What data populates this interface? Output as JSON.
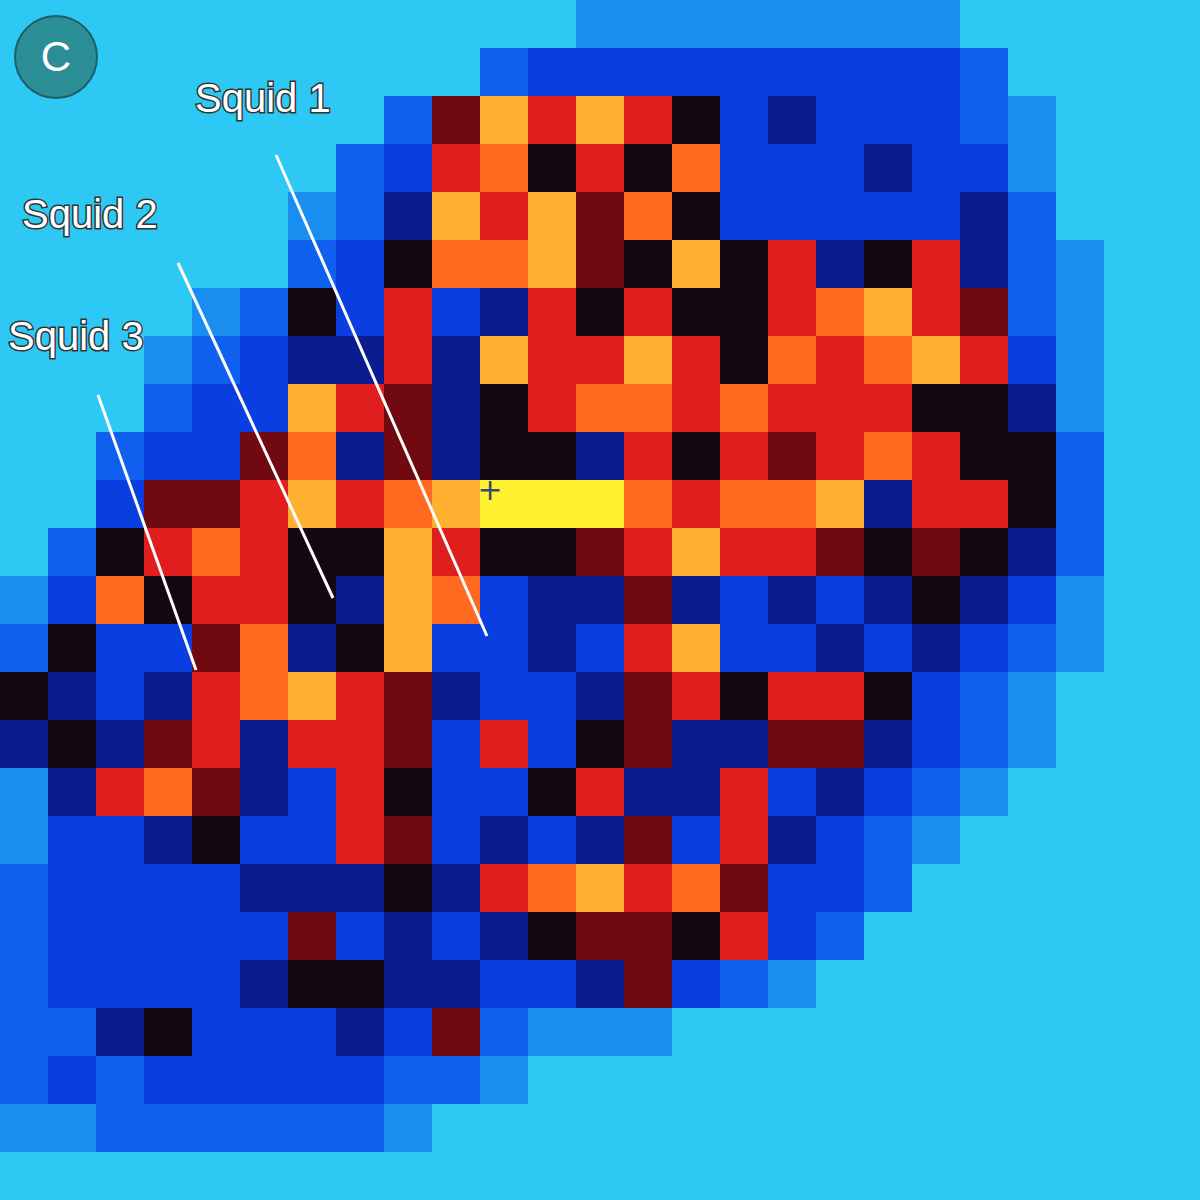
{
  "chart_data": {
    "type": "heatmap",
    "panel_label": "C",
    "tick_labels": false,
    "color_range": [
      0,
      10
    ],
    "colors": [
      "#2ec8f5",
      "#1a8ef0",
      "#1060f0",
      "#0a3ee0",
      "#0a1c90",
      "#140810",
      "#700a10",
      "#e01e1e",
      "#ff6a20",
      "#ffb030",
      "#fff030"
    ],
    "annotations": [
      {
        "text": "Squid 1"
      },
      {
        "text": "Squid 2"
      },
      {
        "text": "Squid 3"
      },
      {
        "text": "+"
      }
    ],
    "cells": [
      [
        0,
        0,
        0,
        0,
        0,
        0,
        0,
        0,
        0,
        0,
        0,
        0,
        1,
        1,
        1,
        1,
        1,
        1,
        1,
        1,
        0,
        0,
        0,
        0,
        0
      ],
      [
        0,
        0,
        0,
        0,
        0,
        0,
        0,
        0,
        0,
        0,
        2,
        3,
        3,
        3,
        3,
        3,
        3,
        3,
        3,
        3,
        2,
        0,
        0,
        0,
        0
      ],
      [
        0,
        0,
        0,
        0,
        0,
        0,
        0,
        0,
        2,
        6,
        9,
        7,
        9,
        7,
        5,
        3,
        4,
        3,
        3,
        3,
        2,
        1,
        0,
        0,
        0
      ],
      [
        0,
        0,
        0,
        0,
        0,
        0,
        0,
        2,
        3,
        7,
        8,
        5,
        7,
        5,
        8,
        3,
        3,
        3,
        4,
        3,
        3,
        1,
        0,
        0,
        0
      ],
      [
        0,
        0,
        0,
        0,
        0,
        0,
        1,
        2,
        4,
        9,
        7,
        9,
        6,
        8,
        5,
        3,
        3,
        3,
        3,
        3,
        4,
        2,
        0,
        0,
        0
      ],
      [
        0,
        0,
        0,
        0,
        0,
        0,
        2,
        3,
        5,
        8,
        8,
        9,
        6,
        5,
        9,
        5,
        7,
        4,
        5,
        7,
        4,
        2,
        1,
        0,
        0
      ],
      [
        0,
        0,
        0,
        0,
        1,
        2,
        5,
        3,
        7,
        3,
        4,
        7,
        5,
        7,
        5,
        5,
        7,
        8,
        9,
        7,
        6,
        2,
        1,
        0,
        0
      ],
      [
        0,
        0,
        0,
        1,
        2,
        3,
        4,
        4,
        7,
        4,
        9,
        7,
        7,
        9,
        7,
        5,
        8,
        7,
        8,
        9,
        7,
        3,
        1,
        0,
        0
      ],
      [
        0,
        0,
        0,
        2,
        3,
        3,
        9,
        7,
        6,
        4,
        5,
        7,
        8,
        8,
        7,
        8,
        7,
        7,
        7,
        5,
        5,
        4,
        1,
        0,
        0
      ],
      [
        0,
        0,
        2,
        3,
        3,
        6,
        8,
        4,
        6,
        4,
        5,
        5,
        4,
        7,
        5,
        7,
        6,
        7,
        8,
        7,
        5,
        5,
        2,
        0,
        0
      ],
      [
        0,
        0,
        3,
        6,
        6,
        7,
        9,
        7,
        8,
        9,
        10,
        10,
        10,
        8,
        7,
        8,
        8,
        9,
        4,
        7,
        7,
        5,
        2,
        0,
        0
      ],
      [
        0,
        2,
        5,
        7,
        8,
        7,
        5,
        5,
        9,
        7,
        5,
        5,
        6,
        7,
        9,
        7,
        7,
        6,
        5,
        6,
        5,
        4,
        2,
        0,
        0
      ],
      [
        1,
        3,
        8,
        5,
        7,
        7,
        5,
        4,
        9,
        8,
        3,
        4,
        4,
        6,
        4,
        3,
        4,
        3,
        4,
        5,
        4,
        3,
        1,
        0,
        0
      ],
      [
        2,
        5,
        3,
        3,
        6,
        8,
        4,
        5,
        9,
        3,
        3,
        4,
        3,
        7,
        9,
        3,
        3,
        4,
        3,
        4,
        3,
        2,
        1,
        0,
        0
      ],
      [
        5,
        4,
        3,
        4,
        7,
        8,
        9,
        7,
        6,
        4,
        3,
        3,
        4,
        6,
        7,
        5,
        7,
        7,
        5,
        3,
        2,
        1,
        0,
        0,
        0
      ],
      [
        4,
        5,
        4,
        6,
        7,
        4,
        7,
        7,
        6,
        3,
        7,
        3,
        5,
        6,
        4,
        4,
        6,
        6,
        4,
        3,
        2,
        1,
        0,
        0,
        0
      ],
      [
        1,
        4,
        7,
        8,
        6,
        4,
        3,
        7,
        5,
        3,
        3,
        5,
        7,
        4,
        4,
        7,
        3,
        4,
        3,
        2,
        1,
        0,
        0,
        0,
        0
      ],
      [
        1,
        3,
        3,
        4,
        5,
        3,
        3,
        7,
        6,
        3,
        4,
        3,
        4,
        6,
        3,
        7,
        4,
        3,
        2,
        1,
        0,
        0,
        0,
        0,
        0
      ],
      [
        2,
        3,
        3,
        3,
        3,
        4,
        4,
        4,
        5,
        4,
        7,
        8,
        9,
        7,
        8,
        6,
        3,
        3,
        2,
        0,
        0,
        0,
        0,
        0,
        0
      ],
      [
        2,
        3,
        3,
        3,
        3,
        3,
        6,
        3,
        4,
        3,
        4,
        5,
        6,
        6,
        5,
        7,
        3,
        2,
        0,
        0,
        0,
        0,
        0,
        0,
        0
      ],
      [
        2,
        3,
        3,
        3,
        3,
        4,
        5,
        5,
        4,
        4,
        3,
        3,
        4,
        6,
        3,
        2,
        1,
        0,
        0,
        0,
        0,
        0,
        0,
        0,
        0
      ],
      [
        2,
        2,
        4,
        5,
        3,
        3,
        3,
        4,
        3,
        6,
        2,
        1,
        1,
        1,
        0,
        0,
        0,
        0,
        0,
        0,
        0,
        0,
        0,
        0,
        0
      ],
      [
        2,
        3,
        2,
        3,
        3,
        3,
        3,
        3,
        2,
        2,
        1,
        0,
        0,
        0,
        0,
        0,
        0,
        0,
        0,
        0,
        0,
        0,
        0,
        0,
        0
      ],
      [
        1,
        1,
        2,
        2,
        2,
        2,
        2,
        2,
        1,
        0,
        0,
        0,
        0,
        0,
        0,
        0,
        0,
        0,
        0,
        0,
        0,
        0,
        0,
        0,
        0
      ],
      [
        0,
        0,
        0,
        0,
        0,
        0,
        0,
        0,
        0,
        0,
        0,
        0,
        0,
        0,
        0,
        0,
        0,
        0,
        0,
        0,
        0,
        0,
        0,
        0,
        0
      ]
    ]
  }
}
